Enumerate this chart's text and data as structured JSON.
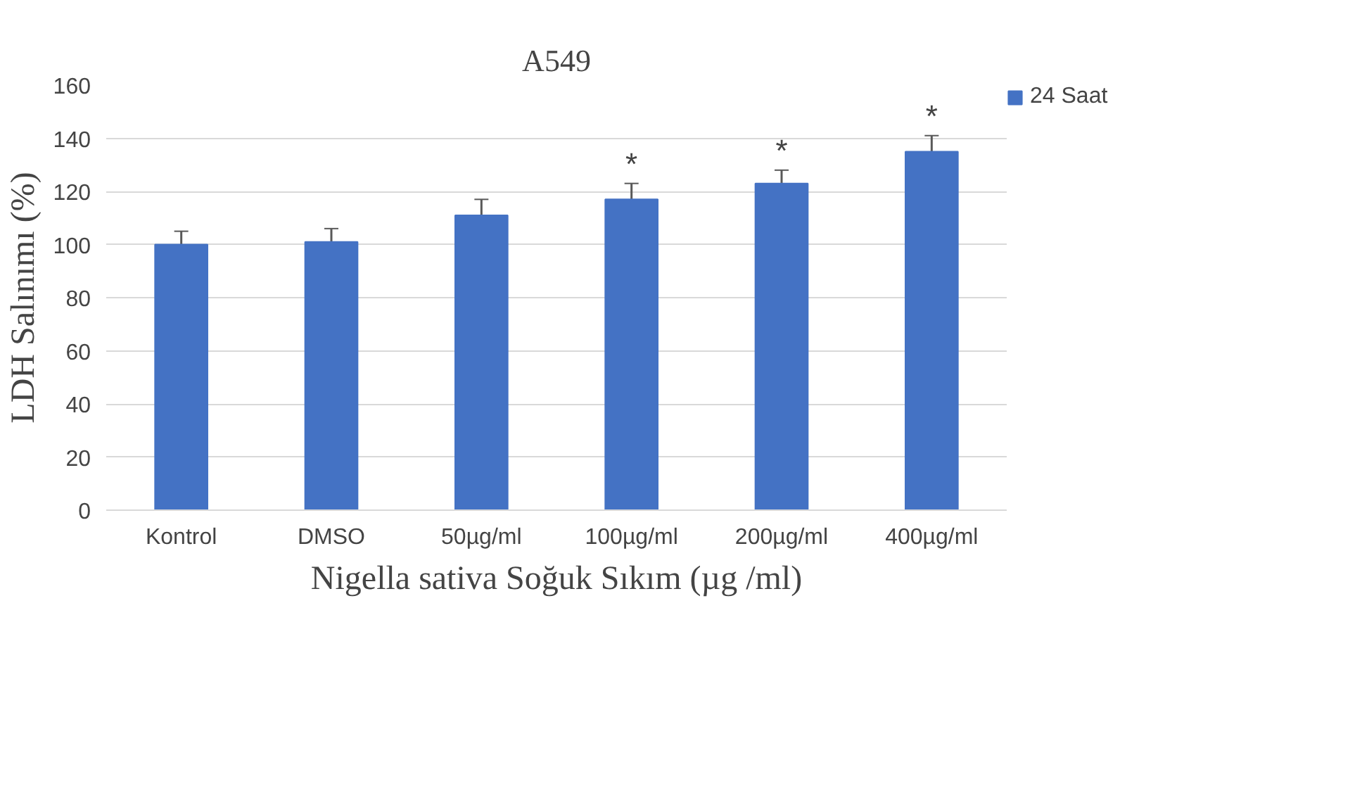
{
  "chart_data": {
    "type": "bar",
    "title": "A549",
    "xlabel": "Nigella sativa Soğuk Sıkım (µg /ml)",
    "ylabel": "LDH Salınımı (%)",
    "categories": [
      "Kontrol",
      "DMSO",
      "50µg/ml",
      "100µg/ml",
      "200µg/ml",
      "400µg/ml"
    ],
    "series": [
      {
        "name": "24 Saat",
        "color": "#4472c4",
        "values": [
          100,
          101,
          111,
          117,
          123,
          135
        ],
        "errors": [
          5,
          5,
          6,
          6,
          5,
          6
        ]
      }
    ],
    "annotations": [
      {
        "text": "*",
        "x": "100µg/ml",
        "y": 117
      },
      {
        "text": "*",
        "x": "200µg/ml",
        "y": 123
      },
      {
        "text": "*",
        "x": "400µg/ml",
        "y": 135
      }
    ],
    "ylim": [
      0,
      160
    ],
    "yticks": [
      0,
      20,
      40,
      60,
      80,
      100,
      120,
      140,
      160
    ],
    "grid": "y",
    "legend": "top right"
  }
}
